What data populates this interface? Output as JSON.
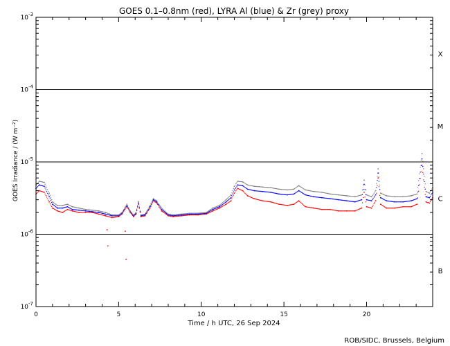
{
  "chart_data": {
    "type": "scatter",
    "title": "GOES 0.1–0.8nm (red), LYRA Al (blue) & Zr (grey) proxy",
    "xlabel": "Time / h UTC, 26 Sep 2024",
    "ylabel": "GOES Irradiance / (W m⁻²)",
    "xlim": [
      0,
      24
    ],
    "ylim": [
      1e-07,
      0.001
    ],
    "yscale": "log",
    "x_ticks": [
      {
        "value": 0,
        "label": "0"
      },
      {
        "value": 5,
        "label": "5"
      },
      {
        "value": 10,
        "label": "10"
      },
      {
        "value": 15,
        "label": "15"
      },
      {
        "value": 20,
        "label": "20"
      }
    ],
    "y_ticks": [
      {
        "value": 1e-07,
        "base": "10",
        "exp": "-7"
      },
      {
        "value": 1e-06,
        "base": "10",
        "exp": "-6"
      },
      {
        "value": 1e-05,
        "base": "10",
        "exp": "-5"
      },
      {
        "value": 0.0001,
        "base": "10",
        "exp": "-4"
      },
      {
        "value": 0.001,
        "base": "10",
        "exp": "-3"
      }
    ],
    "flare_class_lines": [
      1e-06,
      1e-05,
      0.0001
    ],
    "flare_classes": [
      {
        "label": "X",
        "value": 0.000316
      },
      {
        "label": "M",
        "value": 3.16e-05
      },
      {
        "label": "C",
        "value": 3.16e-06
      },
      {
        "label": "B",
        "value": 3.16e-07
      }
    ],
    "footer": "ROB/SIDC, Brussels, Belgium",
    "series": [
      {
        "color": "#ff0000",
        "x": [
          0,
          0.2,
          0.5,
          0.8,
          1,
          1.3,
          1.6,
          1.9,
          2.2,
          2.6,
          3,
          3.4,
          3.8,
          4.2,
          4.6,
          5,
          5.2,
          5.5,
          5.7,
          5.9,
          6.05,
          6.2,
          6.35,
          6.6,
          6.9,
          7.1,
          7.3,
          7.6,
          8,
          8.3,
          8.8,
          9.3,
          9.8,
          10.3,
          10.7,
          11.1,
          11.5,
          11.8,
          12,
          12.2,
          12.5,
          12.8,
          13.2,
          13.7,
          14.2,
          14.7,
          15.2,
          15.6,
          15.9,
          16.3,
          16.8,
          17.3,
          17.8,
          18.3,
          18.8,
          19.3,
          19.7,
          19.85,
          20,
          20.3,
          20.55,
          20.7,
          20.85,
          21.2,
          21.7,
          22.2,
          22.7,
          23.05,
          23.35,
          23.6,
          23.8,
          24
        ],
        "y": [
          3.6e-06,
          4e-06,
          3.8e-06,
          2.8e-06,
          2.3e-06,
          2.1e-06,
          2e-06,
          2.2e-06,
          2.1e-06,
          2e-06,
          2e-06,
          2e-06,
          1.9e-06,
          1.8e-06,
          1.7e-06,
          1.75e-06,
          1.9e-06,
          2.4e-06,
          2e-06,
          1.75e-06,
          1.9e-06,
          2.6e-06,
          1.75e-06,
          1.8e-06,
          2.3e-06,
          2.9e-06,
          2.7e-06,
          2.1e-06,
          1.8e-06,
          1.75e-06,
          1.8e-06,
          1.85e-06,
          1.85e-06,
          1.9e-06,
          2.1e-06,
          2.3e-06,
          2.6e-06,
          2.9e-06,
          3.7e-06,
          4.3e-06,
          4e-06,
          3.4e-06,
          3.1e-06,
          2.9e-06,
          2.8e-06,
          2.6e-06,
          2.5e-06,
          2.6e-06,
          2.9e-06,
          2.4e-06,
          2.3e-06,
          2.2e-06,
          2.2e-06,
          2.1e-06,
          2.1e-06,
          2.1e-06,
          2.3e-06,
          3.8e-06,
          2.4e-06,
          2.3e-06,
          2.9e-06,
          6e-06,
          2.6e-06,
          2.3e-06,
          2.3e-06,
          2.4e-06,
          2.4e-06,
          2.6e-06,
          9e-06,
          2.8e-06,
          2.7e-06,
          3.2e-06
        ]
      },
      {
        "color": "#0000ff",
        "x": [
          0,
          0.2,
          0.5,
          0.8,
          1,
          1.3,
          1.6,
          1.9,
          2.2,
          2.6,
          3,
          3.4,
          3.8,
          4.2,
          4.6,
          5,
          5.2,
          5.5,
          5.7,
          5.9,
          6.05,
          6.2,
          6.35,
          6.6,
          6.9,
          7.1,
          7.3,
          7.6,
          8,
          8.3,
          8.8,
          9.3,
          9.8,
          10.3,
          10.7,
          11.1,
          11.5,
          11.8,
          12,
          12.2,
          12.5,
          12.8,
          13.2,
          13.7,
          14.2,
          14.7,
          15.2,
          15.6,
          15.9,
          16.3,
          16.8,
          17.3,
          17.8,
          18.3,
          18.8,
          19.3,
          19.7,
          19.85,
          20,
          20.3,
          20.55,
          20.7,
          20.85,
          21.2,
          21.7,
          22.2,
          22.7,
          23.05,
          23.35,
          23.6,
          23.8,
          24
        ],
        "y": [
          4.3e-06,
          4.8e-06,
          4.6e-06,
          3.3e-06,
          2.6e-06,
          2.3e-06,
          2.3e-06,
          2.4e-06,
          2.2e-06,
          2.15e-06,
          2.1e-06,
          2.05e-06,
          2e-06,
          1.9e-06,
          1.8e-06,
          1.8e-06,
          1.95e-06,
          2.5e-06,
          2.05e-06,
          1.8e-06,
          1.95e-06,
          2.7e-06,
          1.8e-06,
          1.85e-06,
          2.4e-06,
          3e-06,
          2.8e-06,
          2.2e-06,
          1.85e-06,
          1.8e-06,
          1.85e-06,
          1.9e-06,
          1.9e-06,
          1.95e-06,
          2.2e-06,
          2.4e-06,
          2.8e-06,
          3.2e-06,
          4.1e-06,
          4.8e-06,
          4.7e-06,
          4.2e-06,
          4e-06,
          3.9e-06,
          3.8e-06,
          3.6e-06,
          3.5e-06,
          3.6e-06,
          4e-06,
          3.5e-06,
          3.3e-06,
          3.2e-06,
          3.1e-06,
          3e-06,
          2.9e-06,
          2.8e-06,
          3e-06,
          4.9e-06,
          3e-06,
          2.9e-06,
          3.5e-06,
          7e-06,
          3.2e-06,
          2.9e-06,
          2.8e-06,
          2.8e-06,
          2.9e-06,
          3.1e-06,
          1.1e-05,
          3.3e-06,
          3.2e-06,
          3.8e-06
        ]
      },
      {
        "color": "#808080",
        "x": [
          0,
          0.2,
          0.5,
          0.8,
          1,
          1.3,
          1.6,
          1.9,
          2.2,
          2.6,
          3,
          3.4,
          3.8,
          4.2,
          4.6,
          5,
          5.2,
          5.5,
          5.7,
          5.9,
          6.05,
          6.2,
          6.35,
          6.6,
          6.9,
          7.1,
          7.3,
          7.6,
          8,
          8.3,
          8.8,
          9.3,
          9.8,
          10.3,
          10.7,
          11.1,
          11.5,
          11.8,
          12,
          12.2,
          12.5,
          12.8,
          13.2,
          13.7,
          14.2,
          14.7,
          15.2,
          15.6,
          15.9,
          16.3,
          16.8,
          17.3,
          17.8,
          18.3,
          18.8,
          19.3,
          19.7,
          19.85,
          20,
          20.3,
          20.55,
          20.7,
          20.85,
          21.2,
          21.7,
          22.2,
          22.7,
          23.05,
          23.35,
          23.6,
          23.8,
          24
        ],
        "y": [
          4.8e-06,
          5.4e-06,
          5.2e-06,
          3.7e-06,
          2.8e-06,
          2.5e-06,
          2.5e-06,
          2.6e-06,
          2.4e-06,
          2.3e-06,
          2.2e-06,
          2.15e-06,
          2.1e-06,
          2e-06,
          1.85e-06,
          1.85e-06,
          2e-06,
          2.6e-06,
          2.1e-06,
          1.85e-06,
          2e-06,
          2.8e-06,
          1.85e-06,
          1.9e-06,
          2.5e-06,
          3.1e-06,
          2.9e-06,
          2.3e-06,
          1.9e-06,
          1.85e-06,
          1.9e-06,
          1.95e-06,
          1.95e-06,
          2e-06,
          2.3e-06,
          2.5e-06,
          3e-06,
          3.5e-06,
          4.6e-06,
          5.4e-06,
          5.3e-06,
          4.8e-06,
          4.6e-06,
          4.5e-06,
          4.4e-06,
          4.2e-06,
          4.1e-06,
          4.2e-06,
          4.7e-06,
          4.1e-06,
          3.9e-06,
          3.8e-06,
          3.6e-06,
          3.5e-06,
          3.4e-06,
          3.3e-06,
          3.5e-06,
          5.6e-06,
          3.5e-06,
          3.3e-06,
          4e-06,
          8e-06,
          3.7e-06,
          3.4e-06,
          3.3e-06,
          3.3e-06,
          3.4e-06,
          3.6e-06,
          1.3e-05,
          3.9e-06,
          3.7e-06,
          4.4e-06
        ]
      }
    ],
    "outliers": [
      {
        "color": "#ff0000",
        "x": 4.3,
        "y": 1.15e-06
      },
      {
        "color": "#ff0000",
        "x": 4.35,
        "y": 6.9e-07
      },
      {
        "color": "#ff0000",
        "x": 5.4,
        "y": 1.1e-06
      },
      {
        "color": "#ff0000",
        "x": 5.45,
        "y": 4.5e-07
      }
    ]
  }
}
